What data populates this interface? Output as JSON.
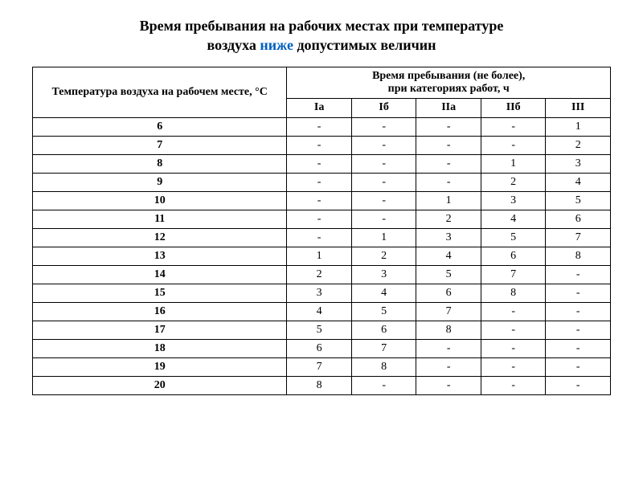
{
  "title": {
    "line1": "Время пребывания на рабочих местах при температуре",
    "line2_before": "воздуха ",
    "line2_highlight": "ниже",
    "line2_after": " допустимых величин"
  },
  "table": {
    "header_temp": "Температура воздуха на рабочем месте, °С",
    "header_right_line1": "Время пребывания (не более),",
    "header_right_line2": "при категориях работ, ч",
    "categories": [
      "Iа",
      "Iб",
      "IIа",
      "IIб",
      "III"
    ],
    "rows": [
      {
        "temp": "6",
        "values": [
          "-",
          "-",
          "-",
          "-",
          "1"
        ]
      },
      {
        "temp": "7",
        "values": [
          "-",
          "-",
          "-",
          "-",
          "2"
        ]
      },
      {
        "temp": "8",
        "values": [
          "-",
          "-",
          "-",
          "1",
          "3"
        ]
      },
      {
        "temp": "9",
        "values": [
          "-",
          "-",
          "-",
          "2",
          "4"
        ]
      },
      {
        "temp": "10",
        "values": [
          "-",
          "-",
          "1",
          "3",
          "5"
        ]
      },
      {
        "temp": "11",
        "values": [
          "-",
          "-",
          "2",
          "4",
          "6"
        ]
      },
      {
        "temp": "12",
        "values": [
          "-",
          "1",
          "3",
          "5",
          "7"
        ]
      },
      {
        "temp": "13",
        "values": [
          "1",
          "2",
          "4",
          "6",
          "8"
        ]
      },
      {
        "temp": "14",
        "values": [
          "2",
          "3",
          "5",
          "7",
          "-"
        ]
      },
      {
        "temp": "15",
        "values": [
          "3",
          "4",
          "6",
          "8",
          "-"
        ]
      },
      {
        "temp": "16",
        "values": [
          "4",
          "5",
          "7",
          "-",
          "-"
        ]
      },
      {
        "temp": "17",
        "values": [
          "5",
          "6",
          "8",
          "-",
          "-"
        ]
      },
      {
        "temp": "18",
        "values": [
          "6",
          "7",
          "-",
          "-",
          "-"
        ]
      },
      {
        "temp": "19",
        "values": [
          "7",
          "8",
          "-",
          "-",
          "-"
        ]
      },
      {
        "temp": "20",
        "values": [
          "8",
          "-",
          "-",
          "-",
          "-"
        ]
      }
    ]
  },
  "styles": {
    "title_fontsize": 18,
    "cell_fontsize": 14,
    "highlight_color": "#0060c0",
    "text_color": "#000000",
    "border_color": "#000000",
    "background_color": "#ffffff"
  }
}
